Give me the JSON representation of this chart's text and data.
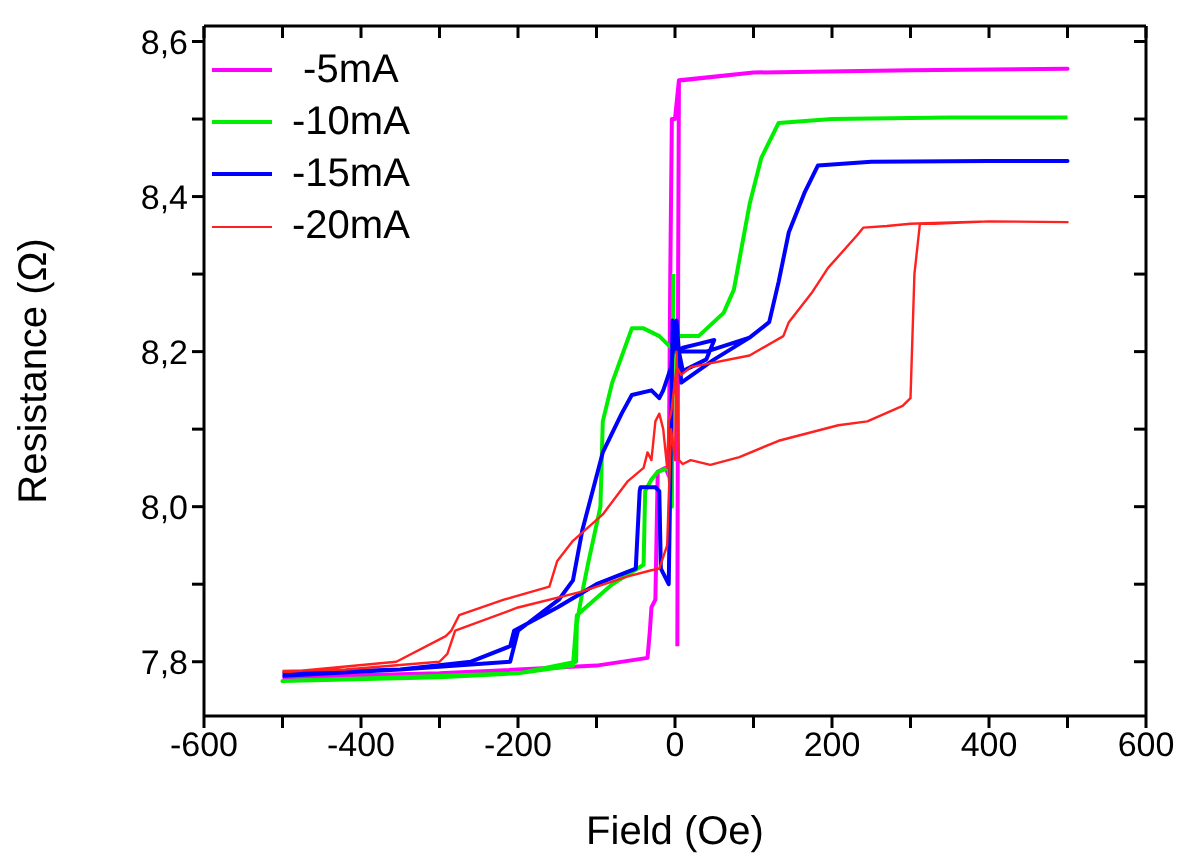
{
  "chart_data": {
    "type": "line",
    "xlabel": "Field (Oe)",
    "ylabel": "Resistance (Ω)",
    "xlim": [
      -600,
      600
    ],
    "ylim": [
      7.73,
      8.62
    ],
    "xticks": [
      -600,
      {
        "value": -500,
        "label": null
      },
      -400,
      {
        "value": -300,
        "label": null
      },
      -200,
      {
        "value": -100,
        "label": null
      },
      0,
      {
        "value": 100,
        "label": null
      },
      200,
      {
        "value": 300,
        "label": null
      },
      400,
      {
        "value": 500,
        "label": null
      },
      600
    ],
    "yticks": [
      {
        "value": 7.8,
        "label": "7,8"
      },
      {
        "value": 7.9,
        "label": null
      },
      {
        "value": 8.0,
        "label": "8,0"
      },
      {
        "value": 8.1,
        "label": null
      },
      {
        "value": 8.2,
        "label": "8,2"
      },
      {
        "value": 8.3,
        "label": null
      },
      {
        "value": 8.4,
        "label": "8,4"
      },
      {
        "value": 8.5,
        "label": null
      },
      {
        "value": 8.6,
        "label": "8,6"
      }
    ],
    "grid": false,
    "legend": "top left",
    "marker": "none",
    "line_style": "solid",
    "series": [
      {
        "name": " -5mA",
        "color": "#ff00ff",
        "x": [
          -500,
          -300,
          -100,
          -35,
          -32,
          -30,
          -25,
          -22,
          -12,
          -8,
          -6,
          -4,
          0,
          5,
          100,
          300,
          500,
          300,
          100,
          10,
          5,
          4,
          3
        ],
        "values": [
          7.78,
          7.785,
          7.795,
          7.805,
          7.84,
          7.87,
          7.88,
          8.045,
          8.05,
          8.04,
          8.3,
          8.5,
          8.5,
          8.55,
          8.56,
          8.563,
          8.565,
          8.563,
          8.56,
          8.55,
          8.55,
          8.3,
          7.82
        ]
      },
      {
        "name": "-10mA",
        "color": "#00ee00",
        "x": [
          -2,
          -4,
          -8,
          -22,
          -30,
          -38,
          -40,
          -80,
          -125,
          -130,
          -200,
          -300,
          -500,
          -350,
          -200,
          -126,
          -125,
          -118,
          -110,
          -95,
          -92,
          -80,
          -55,
          -40,
          -20,
          0,
          5,
          30,
          62,
          75,
          95,
          110,
          132,
          200,
          350,
          500
        ],
        "values": [
          8.3,
          8.0,
          8.05,
          8.045,
          8.035,
          8.02,
          7.925,
          7.9,
          7.86,
          7.795,
          7.785,
          7.78,
          7.775,
          7.78,
          7.785,
          7.8,
          7.85,
          7.89,
          7.93,
          8.0,
          8.11,
          8.16,
          8.23,
          8.23,
          8.22,
          8.2,
          8.22,
          8.22,
          8.25,
          8.28,
          8.39,
          8.45,
          8.495,
          8.5,
          8.502,
          8.502
        ]
      },
      {
        "name": "-15mA",
        "color": "#0000ff",
        "x": [
          -500,
          -350,
          -260,
          -210,
          -205,
          -150,
          -100,
          -50,
          -45,
          -44,
          -25,
          -20,
          -18,
          -8,
          -5,
          -3,
          0,
          3,
          10,
          30,
          50,
          40,
          20,
          10,
          5,
          40,
          95,
          120,
          132,
          145,
          165,
          182,
          250,
          400,
          500,
          400,
          250,
          182,
          165,
          145,
          132,
          120,
          95,
          50,
          8,
          2,
          -5,
          -15,
          -20,
          -30,
          -55,
          -68,
          -92,
          -118,
          -130,
          -148,
          -200,
          -205,
          -210,
          -350,
          -500
        ],
        "values": [
          7.785,
          7.79,
          7.8,
          7.82,
          7.84,
          7.87,
          7.9,
          7.92,
          8.02,
          8.025,
          8.025,
          8.02,
          7.92,
          7.9,
          8.1,
          8.24,
          8.22,
          8.2,
          8.205,
          8.21,
          8.215,
          8.19,
          8.18,
          8.175,
          8.2,
          8.2,
          8.218,
          8.238,
          8.29,
          8.354,
          8.405,
          8.44,
          8.445,
          8.446,
          8.446,
          8.446,
          8.445,
          8.44,
          8.405,
          8.354,
          8.29,
          8.238,
          8.218,
          8.19,
          8.16,
          8.24,
          8.18,
          8.15,
          8.14,
          8.15,
          8.144,
          8.12,
          8.07,
          7.97,
          7.905,
          7.88,
          7.84,
          7.82,
          7.8,
          7.79,
          7.782
        ]
      },
      {
        "name": "-20mA",
        "color": "#ff2020",
        "x": [
          -500,
          -420,
          -300,
          -290,
          -280,
          -200,
          -120,
          -60,
          -30,
          -20,
          -10,
          -5,
          0,
          2,
          5,
          10,
          20,
          45,
          82,
          132,
          208,
          245,
          290,
          300,
          305,
          312,
          330,
          400,
          500,
          400,
          330,
          300,
          270,
          240,
          232,
          195,
          175,
          145,
          138,
          95,
          20,
          8,
          2,
          -5,
          -8,
          -10,
          -15,
          -20,
          -25,
          -30,
          -35,
          -40,
          -60,
          -92,
          -130,
          -150,
          -160,
          -218,
          -275,
          -285,
          -292,
          -355,
          -490,
          -500
        ],
        "values": [
          7.788,
          7.79,
          7.8,
          7.81,
          7.84,
          7.87,
          7.89,
          7.91,
          7.918,
          7.92,
          7.95,
          8.1,
          8.06,
          8.2,
          8.06,
          8.055,
          8.06,
          8.054,
          8.064,
          8.085,
          8.105,
          8.11,
          8.13,
          8.14,
          8.3,
          8.365,
          8.365,
          8.368,
          8.367,
          8.368,
          8.366,
          8.365,
          8.362,
          8.36,
          8.35,
          8.308,
          8.277,
          8.238,
          8.22,
          8.195,
          8.18,
          8.17,
          8.18,
          8.12,
          8.11,
          8.05,
          8.1,
          8.12,
          8.11,
          8.06,
          8.07,
          8.05,
          8.033,
          7.99,
          7.956,
          7.93,
          7.897,
          7.88,
          7.86,
          7.84,
          7.833,
          7.8,
          7.787,
          7.787
        ]
      }
    ]
  }
}
